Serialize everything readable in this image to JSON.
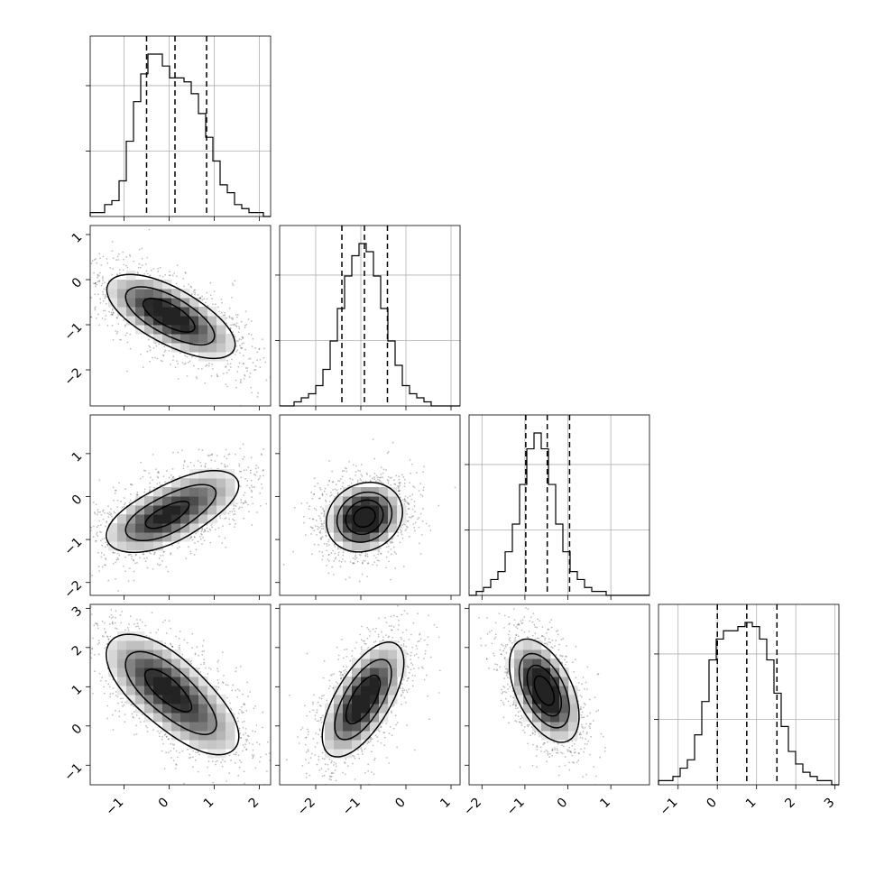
{
  "chart_data": {
    "type": "corner",
    "title": "",
    "grid": true,
    "parameters": [
      {
        "index": 0,
        "range": [
          -1.75,
          2.25
        ],
        "ticks": [
          -1,
          0,
          1,
          2
        ],
        "mean": 0.12,
        "sd": 0.75,
        "quantiles": [
          -0.5,
          0.13,
          0.83
        ],
        "hist_counts": [
          1,
          1,
          3,
          4,
          9,
          19,
          29,
          36,
          41,
          41,
          38,
          35,
          35,
          34,
          31,
          26,
          20,
          14,
          8,
          6,
          3,
          2,
          1,
          1,
          0
        ]
      },
      {
        "index": 1,
        "range": [
          -2.8,
          1.2
        ],
        "ticks": [
          -2,
          -1,
          0,
          1
        ],
        "mean": -0.92,
        "sd": 0.5,
        "quantiles": [
          -1.42,
          -0.92,
          -0.41
        ],
        "hist_counts": [
          0,
          0,
          1,
          2,
          3,
          5,
          9,
          16,
          24,
          32,
          37,
          40,
          38,
          32,
          24,
          16,
          10,
          5,
          3,
          2,
          1,
          0,
          0,
          0,
          0
        ]
      },
      {
        "index": 2,
        "range": [
          -2.3,
          1.9
        ],
        "ticks": [
          -2,
          -1,
          0,
          1
        ],
        "mean": -0.48,
        "sd": 0.48,
        "quantiles": [
          -0.98,
          -0.48,
          0.04
        ],
        "hist_counts": [
          0,
          1,
          2,
          4,
          6,
          11,
          18,
          28,
          37,
          41,
          37,
          28,
          18,
          11,
          6,
          4,
          2,
          1,
          1,
          0,
          0,
          0,
          0,
          0,
          0
        ]
      },
      {
        "index": 3,
        "range": [
          -1.5,
          3.1
        ],
        "ticks": [
          -1,
          0,
          1,
          2,
          3
        ],
        "mean": 0.75,
        "sd": 0.78,
        "quantiles": [
          0.0,
          0.75,
          1.52
        ],
        "hist_counts": [
          1,
          1,
          2,
          4,
          6,
          12,
          20,
          30,
          35,
          37,
          37,
          38,
          39,
          38,
          35,
          30,
          22,
          14,
          8,
          5,
          3,
          2,
          1,
          1,
          0
        ]
      }
    ],
    "panels_2d": [
      {
        "x": 0,
        "y": 1,
        "centers": [
          [
            -0.28,
            -0.62,
            0.6
          ],
          [
            0.5,
            -1.1,
            0.4
          ]
        ],
        "rho": -0.55
      },
      {
        "x": 0,
        "y": 2,
        "centers": [
          [
            -0.3,
            -0.6,
            0.6
          ],
          [
            0.6,
            0.0,
            0.4
          ]
        ],
        "rho": 0.45
      },
      {
        "x": 1,
        "y": 2,
        "centers": [
          [
            -0.92,
            -0.48,
            1.0
          ]
        ],
        "rho": 0.15
      },
      {
        "x": 0,
        "y": 3,
        "centers": [
          [
            -0.3,
            1.2,
            0.6
          ],
          [
            0.6,
            0.25,
            0.4
          ]
        ],
        "rho": -0.55
      },
      {
        "x": 1,
        "y": 3,
        "centers": [
          [
            -1.15,
            0.3,
            0.5
          ],
          [
            -0.75,
            1.05,
            0.5
          ]
        ],
        "rho": 0.55
      },
      {
        "x": 2,
        "y": 3,
        "centers": [
          [
            -0.55,
            0.9,
            1.0
          ]
        ],
        "rho": -0.5
      }
    ]
  }
}
